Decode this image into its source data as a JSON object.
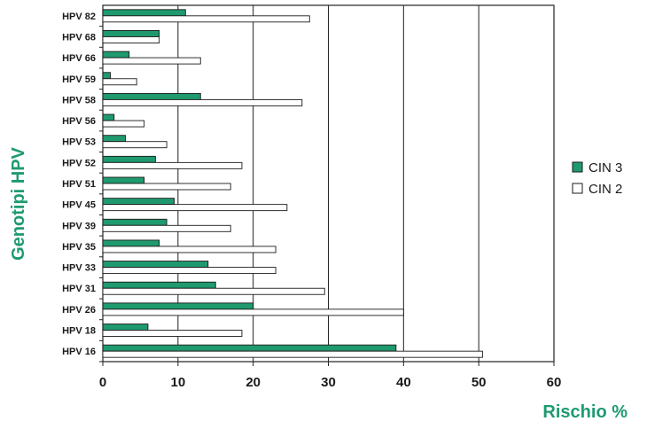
{
  "chart_data": {
    "type": "bar",
    "orientation": "horizontal",
    "categories": [
      "HPV 82",
      "HPV 68",
      "HPV 66",
      "HPV 59",
      "HPV 58",
      "HPV 56",
      "HPV 53",
      "HPV 52",
      "HPV 51",
      "HPV 45",
      "HPV 39",
      "HPV 35",
      "HPV 33",
      "HPV 31",
      "HPV 26",
      "HPV 18",
      "HPV 16"
    ],
    "series": [
      {
        "name": "CIN 3",
        "color": "#1f9a6e",
        "values": [
          11,
          7.5,
          3.5,
          1,
          13,
          1.5,
          3,
          7,
          5.5,
          9.5,
          8.5,
          7.5,
          14,
          15,
          20,
          6,
          39
        ]
      },
      {
        "name": "CIN 2",
        "color": "#ffffff",
        "values": [
          27.5,
          7.5,
          13,
          4.5,
          26.5,
          5.5,
          8.5,
          18.5,
          17,
          24.5,
          17,
          23,
          23,
          29.5,
          40,
          18.5,
          50.5
        ]
      }
    ],
    "xlabel": "Rischio %",
    "ylabel": "Genotipi HPV",
    "xlim": [
      0,
      60
    ],
    "xticks": [
      0,
      10,
      20,
      30,
      40,
      50,
      60
    ],
    "grid": "vertical",
    "legend": "right"
  }
}
